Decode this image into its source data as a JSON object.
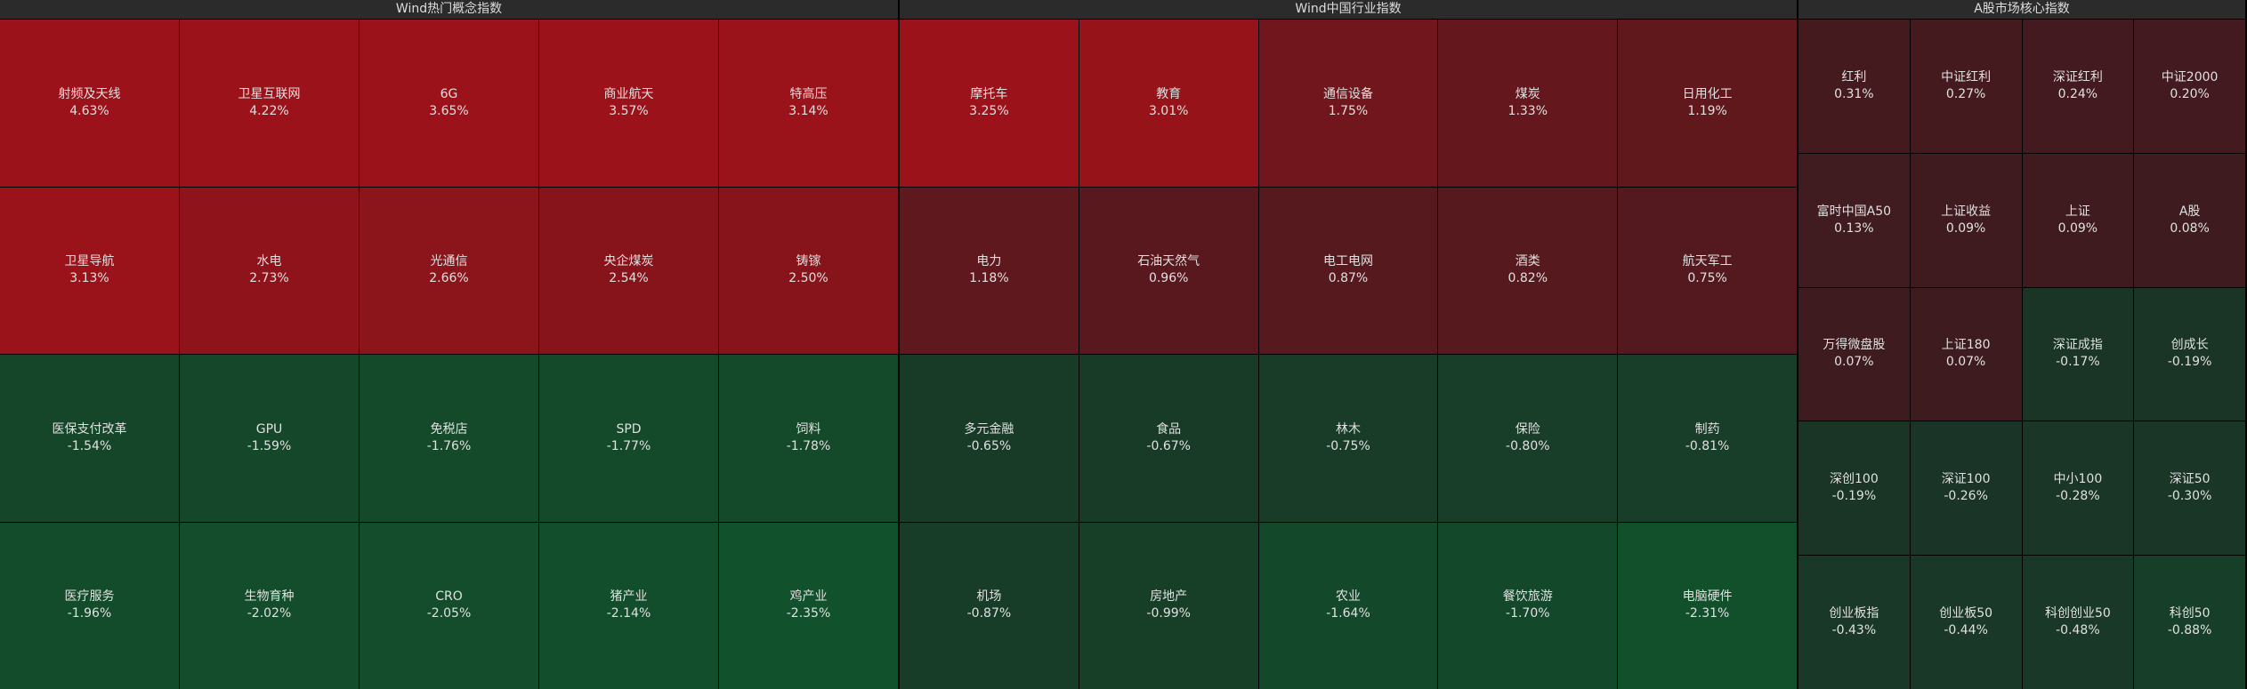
{
  "panels": [
    {
      "title": "Wind热门概念指数",
      "cols": 5,
      "cells": [
        {
          "name": "射频及天线",
          "change": "4.63%"
        },
        {
          "name": "卫星互联网",
          "change": "4.22%"
        },
        {
          "name": "6G",
          "change": "3.65%"
        },
        {
          "name": "商业航天",
          "change": "3.57%"
        },
        {
          "name": "特高压",
          "change": "3.14%"
        },
        {
          "name": "卫星导航",
          "change": "3.13%"
        },
        {
          "name": "水电",
          "change": "2.73%"
        },
        {
          "name": "光通信",
          "change": "2.66%"
        },
        {
          "name": "央企煤炭",
          "change": "2.54%"
        },
        {
          "name": "铸镓",
          "change": "2.50%"
        },
        {
          "name": "医保支付改革",
          "change": "-1.54%"
        },
        {
          "name": "GPU",
          "change": "-1.59%"
        },
        {
          "name": "免税店",
          "change": "-1.76%"
        },
        {
          "name": "SPD",
          "change": "-1.77%"
        },
        {
          "name": "饲料",
          "change": "-1.78%"
        },
        {
          "name": "医疗服务",
          "change": "-1.96%"
        },
        {
          "name": "生物育种",
          "change": "-2.02%"
        },
        {
          "name": "CRO",
          "change": "-2.05%"
        },
        {
          "name": "猪产业",
          "change": "-2.14%"
        },
        {
          "name": "鸡产业",
          "change": "-2.35%"
        }
      ]
    },
    {
      "title": "Wind中国行业指数",
      "cols": 5,
      "cells": [
        {
          "name": "摩托车",
          "change": "3.25%"
        },
        {
          "name": "教育",
          "change": "3.01%"
        },
        {
          "name": "通信设备",
          "change": "1.75%"
        },
        {
          "name": "煤炭",
          "change": "1.33%"
        },
        {
          "name": "日用化工",
          "change": "1.19%"
        },
        {
          "name": "电力",
          "change": "1.18%"
        },
        {
          "name": "石油天然气",
          "change": "0.96%"
        },
        {
          "name": "电工电网",
          "change": "0.87%"
        },
        {
          "name": "酒类",
          "change": "0.82%"
        },
        {
          "name": "航天军工",
          "change": "0.75%"
        },
        {
          "name": "多元金融",
          "change": "-0.65%"
        },
        {
          "name": "食品",
          "change": "-0.67%"
        },
        {
          "name": "林木",
          "change": "-0.75%"
        },
        {
          "name": "保险",
          "change": "-0.80%"
        },
        {
          "name": "制药",
          "change": "-0.81%"
        },
        {
          "name": "机场",
          "change": "-0.87%"
        },
        {
          "name": "房地产",
          "change": "-0.99%"
        },
        {
          "name": "农业",
          "change": "-1.64%"
        },
        {
          "name": "餐饮旅游",
          "change": "-1.70%"
        },
        {
          "name": "电脑硬件",
          "change": "-2.31%"
        }
      ]
    },
    {
      "title": "A股市场核心指数",
      "cols": 4,
      "cells": [
        {
          "name": "红利",
          "change": "0.31%"
        },
        {
          "name": "中证红利",
          "change": "0.27%"
        },
        {
          "name": "深证红利",
          "change": "0.24%"
        },
        {
          "name": "中证2000",
          "change": "0.20%"
        },
        {
          "name": "富时中国A50",
          "change": "0.13%"
        },
        {
          "name": "上证收益",
          "change": "0.09%"
        },
        {
          "name": "上证",
          "change": "0.09%"
        },
        {
          "name": "A股",
          "change": "0.08%"
        },
        {
          "name": "万得微盘股",
          "change": "0.07%"
        },
        {
          "name": "上证180",
          "change": "0.07%"
        },
        {
          "name": "深证成指",
          "change": "-0.17%"
        },
        {
          "name": "创成长",
          "change": "-0.19%"
        },
        {
          "name": "深创100",
          "change": "-0.19%"
        },
        {
          "name": "深证100",
          "change": "-0.26%"
        },
        {
          "name": "中小100",
          "change": "-0.28%"
        },
        {
          "name": "深证50",
          "change": "-0.30%"
        },
        {
          "name": "创业板指",
          "change": "-0.43%"
        },
        {
          "name": "创业板50",
          "change": "-0.44%"
        },
        {
          "name": "科创创业50",
          "change": "-0.48%"
        },
        {
          "name": "科创50",
          "change": "-0.88%"
        }
      ]
    }
  ]
}
